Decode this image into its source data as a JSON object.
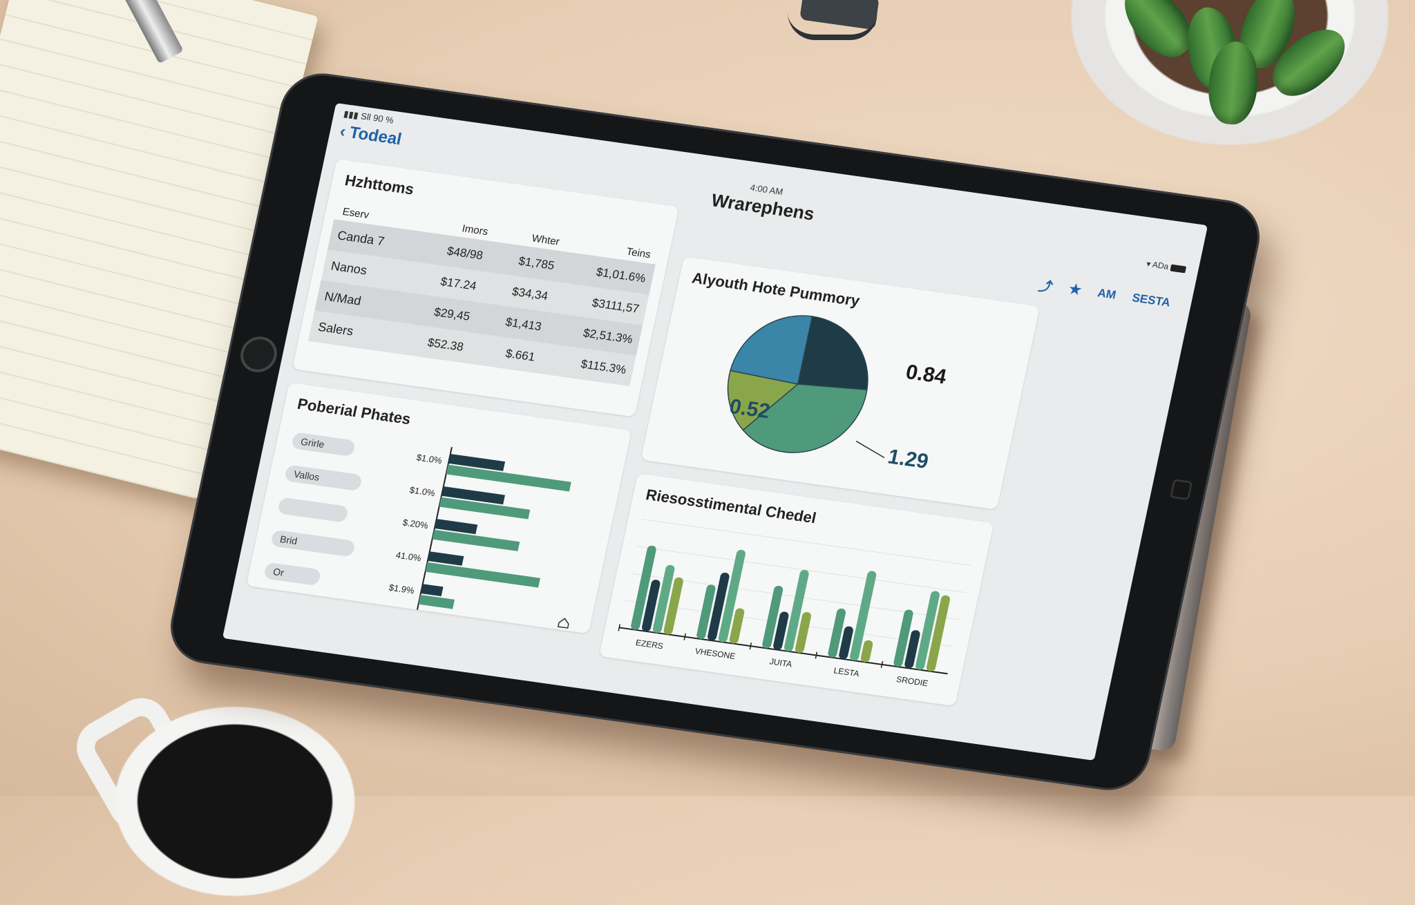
{
  "status": {
    "signal": "Sll 90 %",
    "right": "ADa"
  },
  "nav": {
    "back_label": "Todeal",
    "clock": "4:00 AM",
    "title": "Wrarephens"
  },
  "toolbar": {
    "icons": [
      "share-icon",
      "star-icon"
    ],
    "am_label": "AM",
    "action_label": "SESTA"
  },
  "table_card": {
    "title": "Hzhttoms",
    "row_header": "Eserv",
    "columns": [
      "Imors",
      "Whter",
      "Teins"
    ],
    "rows": [
      {
        "label": "Canda 7",
        "cells": [
          "$48/98",
          "$1,785",
          "$1,01.6%"
        ]
      },
      {
        "label": "Nanos",
        "cells": [
          "$17.24",
          "$34,34",
          "$3111,57"
        ]
      },
      {
        "label": "N/Mad",
        "cells": [
          "$29,45",
          "$1,413",
          "$2,51.3%"
        ]
      },
      {
        "label": "Salers",
        "cells": [
          "$52.38",
          "$.661",
          "$115.3%"
        ]
      }
    ]
  },
  "pie_card": {
    "title": "Alyouth Hote Pummory"
  },
  "hbar_card": {
    "title": "Poberial Phates",
    "pills": [
      "Grirle",
      "Vallos",
      "",
      "Brid",
      "Or"
    ]
  },
  "vbar_card": {
    "title": "Riesosstimental Chedel"
  },
  "chart_data": [
    {
      "type": "pie",
      "title": "Alyouth Hote Pummory",
      "slices": [
        {
          "label": "0.84",
          "value": 0.84,
          "color": "#1f3b48"
        },
        {
          "label": "1.29",
          "value": 1.29,
          "color": "#4f9a7a"
        },
        {
          "label": "0.52",
          "value": 0.52,
          "color": "#8aa64a"
        },
        {
          "label": "",
          "value": 0.84,
          "color": "#3b86a8"
        }
      ],
      "data_labels": [
        "0.84",
        "0.52",
        "1.29"
      ]
    },
    {
      "type": "bar",
      "title": "Poberial Phates",
      "orientation": "horizontal",
      "categories": [
        "$1.0%",
        "$1.0%",
        "$.20%",
        "41.0%",
        "$1.9%"
      ],
      "series": [
        {
          "values": [
            3.2,
            3.6,
            2.4,
            2.0,
            1.2
          ],
          "color": "#1f3b48"
        },
        {
          "values": [
            7.2,
            5.2,
            5.0,
            6.6,
            2.0
          ],
          "color": "#4f9a7a"
        }
      ],
      "xlim": [
        0,
        8
      ]
    },
    {
      "type": "bar",
      "title": "Riesosstimental Chedel",
      "categories": [
        "EZERS",
        "VHESONE",
        "JUITA",
        "LESTA",
        "SRODIE"
      ],
      "series": [
        {
          "values": [
            6.2,
            4.0,
            4.6,
            3.6,
            4.2
          ],
          "color": "#4f9a7a"
        },
        {
          "values": [
            3.8,
            5.0,
            2.8,
            2.4,
            2.8
          ],
          "color": "#1f3b48"
        },
        {
          "values": [
            5.0,
            6.8,
            6.0,
            6.6,
            5.8
          ],
          "color": "#5faa86"
        },
        {
          "values": [
            4.2,
            2.6,
            3.0,
            1.6,
            5.6
          ],
          "color": "#8aa64a"
        }
      ],
      "ylim": [
        0,
        8
      ]
    }
  ]
}
